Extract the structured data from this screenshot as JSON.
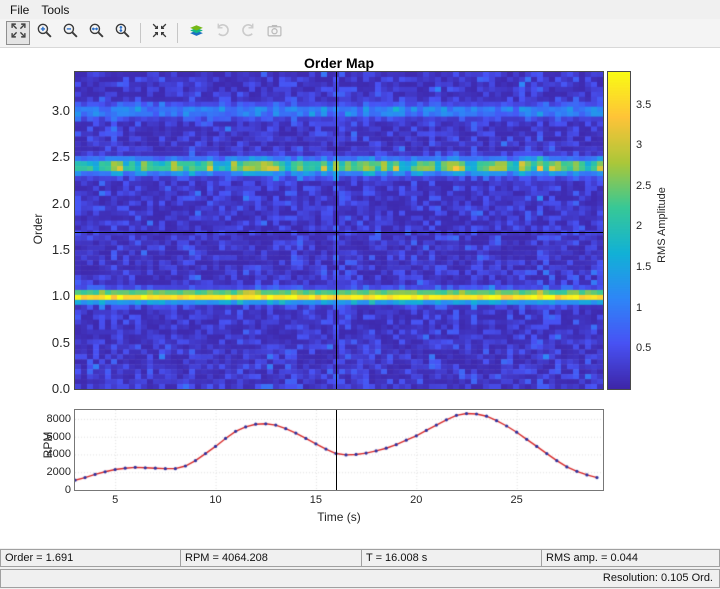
{
  "menu": {
    "items": [
      "File",
      "Tools"
    ]
  },
  "toolbar": {
    "buttons": [
      {
        "name": "fit-to-window",
        "icon": "expand-icon",
        "enabled": true,
        "pressed": true
      },
      {
        "name": "zoom-in",
        "icon": "zoom-in-icon",
        "enabled": true,
        "pressed": false
      },
      {
        "name": "zoom-out",
        "icon": "zoom-out-icon",
        "enabled": true,
        "pressed": false
      },
      {
        "name": "zoom-x",
        "icon": "zoom-x-icon",
        "enabled": true,
        "pressed": false
      },
      {
        "name": "zoom-y",
        "icon": "zoom-y-icon",
        "enabled": true,
        "pressed": false
      },
      {
        "name": "separator"
      },
      {
        "name": "fit-axes",
        "icon": "autoscale-icon",
        "enabled": true,
        "pressed": false
      },
      {
        "name": "separator"
      },
      {
        "name": "order-map-view",
        "icon": "layers-icon",
        "enabled": true,
        "pressed": false
      },
      {
        "name": "rotate-ccw",
        "icon": "rotate-ccw-icon",
        "enabled": false,
        "pressed": false
      },
      {
        "name": "rotate-cw",
        "icon": "rotate-cw-icon",
        "enabled": false,
        "pressed": false
      },
      {
        "name": "snapshot",
        "icon": "camera-icon",
        "enabled": false,
        "pressed": false
      }
    ]
  },
  "order_map": {
    "title": "Order Map",
    "ylabel": "Order",
    "yticks": [
      "0.0",
      "0.5",
      "1.0",
      "1.5",
      "2.0",
      "2.5",
      "3.0"
    ],
    "colorbar": {
      "label": "RMS Amplitude",
      "ticks": [
        "0.5",
        "1",
        "1.5",
        "2",
        "2.5",
        "3",
        "3.5"
      ],
      "tick_values": [
        0.5,
        1,
        1.5,
        2,
        2.5,
        3,
        3.5
      ]
    },
    "crosshair": {
      "time_s": 16.008,
      "order": 1.691
    }
  },
  "rpm_plot": {
    "ylabel": "RPM",
    "xlabel": "Time (s)",
    "yticks": [
      "0",
      "2000",
      "4000",
      "6000",
      "8000"
    ],
    "ytick_values": [
      0,
      2000,
      4000,
      6000,
      8000
    ],
    "xticks": [
      "5",
      "10",
      "15",
      "20",
      "25"
    ],
    "xtick_values": [
      5,
      10,
      15,
      20,
      25
    ]
  },
  "status_bar": {
    "cells": [
      {
        "name": "status-cell-order",
        "text": "Order = 1.691"
      },
      {
        "name": "status-cell-rpm",
        "text": "RPM = 4064.208"
      },
      {
        "name": "status-cell-time",
        "text": "T = 16.008 s"
      },
      {
        "name": "status-cell-rms",
        "text": "RMS amp. = 0.044"
      }
    ]
  },
  "resolution_bar": {
    "text": "Resolution: 0.105 Ord."
  },
  "colors": {
    "rpm_line": "#d62728",
    "rpm_marker": "#30309c",
    "crosshair": "#000000",
    "figure_bg": "#ffffff",
    "chrome_bg": "#f0f0f0"
  },
  "chart_data": [
    {
      "type": "heatmap",
      "title": "Order Map",
      "xlabel": "Time (s)",
      "ylabel": "Order",
      "xlim": [
        3,
        29.3
      ],
      "ylim": [
        0,
        3.42
      ],
      "clim": [
        0,
        3.9
      ],
      "colorbar_label": "RMS Amplitude",
      "colorbar_ticks": [
        0.5,
        1,
        1.5,
        2,
        2.5,
        3,
        3.5
      ],
      "order_bands": [
        {
          "order": 1.0,
          "peak_rms": 3.8
        },
        {
          "order": 2.4,
          "peak_rms": 2.9
        },
        {
          "order": 3.0,
          "peak_rms": 0.9
        }
      ],
      "cursor": {
        "time_s": 16.008,
        "order": 1.691,
        "rpm": 4064.208,
        "rms_amp": 0.044
      },
      "resolution_order": 0.105
    },
    {
      "type": "line",
      "name": "rpm-profile",
      "xlabel": "Time (s)",
      "ylabel": "RPM",
      "xlim": [
        3,
        29.3
      ],
      "ylim": [
        0,
        9000
      ],
      "xticks": [
        5,
        10,
        15,
        20,
        25
      ],
      "yticks": [
        0,
        2000,
        4000,
        6000,
        8000
      ],
      "x": [
        3,
        3.5,
        4,
        4.5,
        5,
        5.5,
        6,
        6.5,
        7,
        7.5,
        8,
        8.5,
        9,
        9.5,
        10,
        10.5,
        11,
        11.5,
        12,
        12.5,
        13,
        13.5,
        14,
        14.5,
        15,
        15.5,
        16,
        16.5,
        17,
        17.5,
        18,
        18.5,
        19,
        19.5,
        20,
        20.5,
        21,
        21.5,
        22,
        22.5,
        23,
        23.5,
        24,
        24.5,
        25,
        25.5,
        26,
        26.5,
        27,
        27.5,
        28,
        28.5,
        29
      ],
      "y": [
        1100,
        1400,
        1750,
        2050,
        2300,
        2450,
        2550,
        2500,
        2450,
        2400,
        2400,
        2700,
        3300,
        4100,
        4900,
        5800,
        6600,
        7100,
        7400,
        7450,
        7300,
        6900,
        6400,
        5800,
        5200,
        4600,
        4100,
        3950,
        4000,
        4150,
        4400,
        4700,
        5100,
        5600,
        6100,
        6700,
        7300,
        7900,
        8400,
        8600,
        8550,
        8300,
        7800,
        7200,
        6500,
        5700,
        4900,
        4100,
        3300,
        2600,
        2100,
        1700,
        1400
      ]
    }
  ]
}
